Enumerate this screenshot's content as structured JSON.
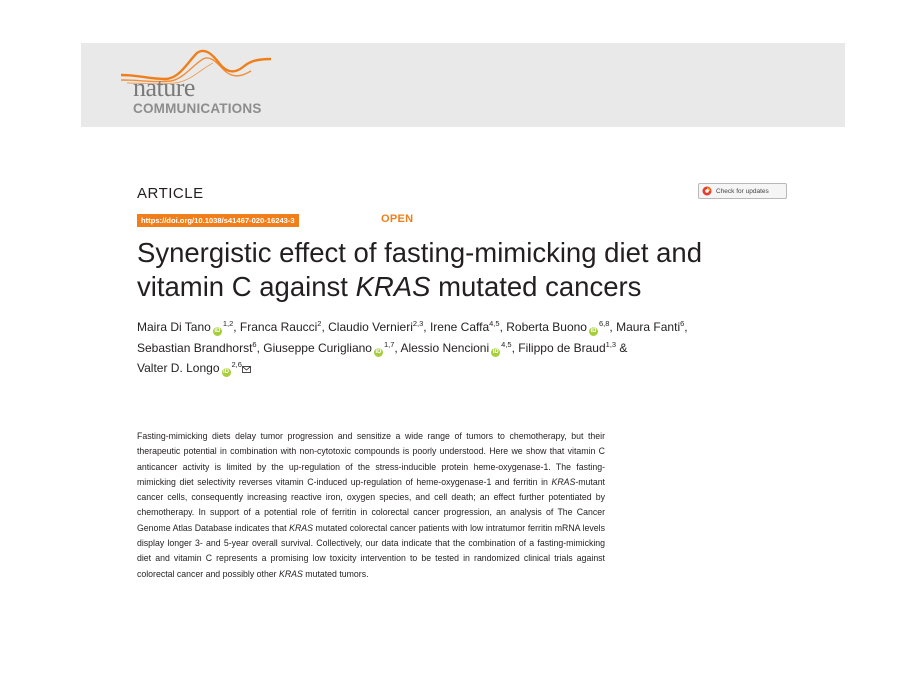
{
  "journal": {
    "logo_line1": "nature",
    "logo_line2": "COMMUNICATIONS",
    "logo_accent_color": "#f07f1b"
  },
  "article_type": "ARTICLE",
  "check_updates_label": "Check for updates",
  "doi": "https://doi.org/10.1038/s41467-020-16243-3",
  "open_label": "OPEN",
  "title": {
    "line1": "Synergistic effect of fasting-mimicking diet and",
    "line2_before": "vitamin C against ",
    "line2_italic": "KRAS",
    "line2_after": " mutated cancers"
  },
  "authors": [
    {
      "name": "Maira Di Tano",
      "orcid": true,
      "aff": "1,2",
      "sep": ", "
    },
    {
      "name": "Franca Raucci",
      "orcid": false,
      "aff": "2",
      "sep": ", "
    },
    {
      "name": "Claudio Vernieri",
      "orcid": false,
      "aff": "2,3",
      "sep": ", "
    },
    {
      "name": "Irene Caffa",
      "orcid": false,
      "aff": "4,5",
      "sep": ", "
    },
    {
      "name": "Roberta Buono",
      "orcid": true,
      "aff": "6,8",
      "sep": ", "
    },
    {
      "name": "Maura Fanti",
      "orcid": false,
      "aff": "6",
      "sep": ", "
    },
    {
      "name": "Sebastian Brandhorst",
      "orcid": false,
      "aff": "6",
      "sep": ", "
    },
    {
      "name": "Giuseppe Curigliano",
      "orcid": true,
      "aff": "1,7",
      "sep": ", "
    },
    {
      "name": "Alessio Nencioni",
      "orcid": true,
      "aff": "4,5",
      "sep": ", "
    },
    {
      "name": "Filippo de Braud",
      "orcid": false,
      "aff": "1,3",
      "sep": " & "
    },
    {
      "name": "Valter D. Longo",
      "orcid": true,
      "aff": "2,6",
      "sep": ""
    }
  ],
  "abstract": {
    "p1": "Fasting-mimicking diets delay tumor progression and sensitize a wide range of tumors to chemotherapy, but their therapeutic potential in combination with non-cytotoxic compounds is poorly understood. Here we show that vitamin C anticancer activity is limited by the up-regulation of the stress-inducible protein heme-oxygenase-1. The fasting-mimicking diet selectivity reverses vitamin C-induced up-regulation of heme-oxygenase-1 and ferritin in ",
    "i1": "KRAS",
    "p2": "-mutant cancer cells, consequently increasing reactive iron, oxygen species, and cell death; an effect further potentiated by chemotherapy. In support of a potential role of ferritin in colorectal cancer progression, an analysis of The Cancer Genome Atlas Database indicates that ",
    "i2": "KRAS",
    "p3": " mutated colorectal cancer patients with low intratumor ferritin mRNA levels display longer 3- and 5-year overall survival. Collectively, our data indicate that the combination of a fasting-mimicking diet and vitamin C represents a promising low toxicity intervention to be tested in randomized clinical trials against colorectal cancer and possibly other ",
    "i3": "KRAS",
    "p4": " mutated tumors."
  }
}
